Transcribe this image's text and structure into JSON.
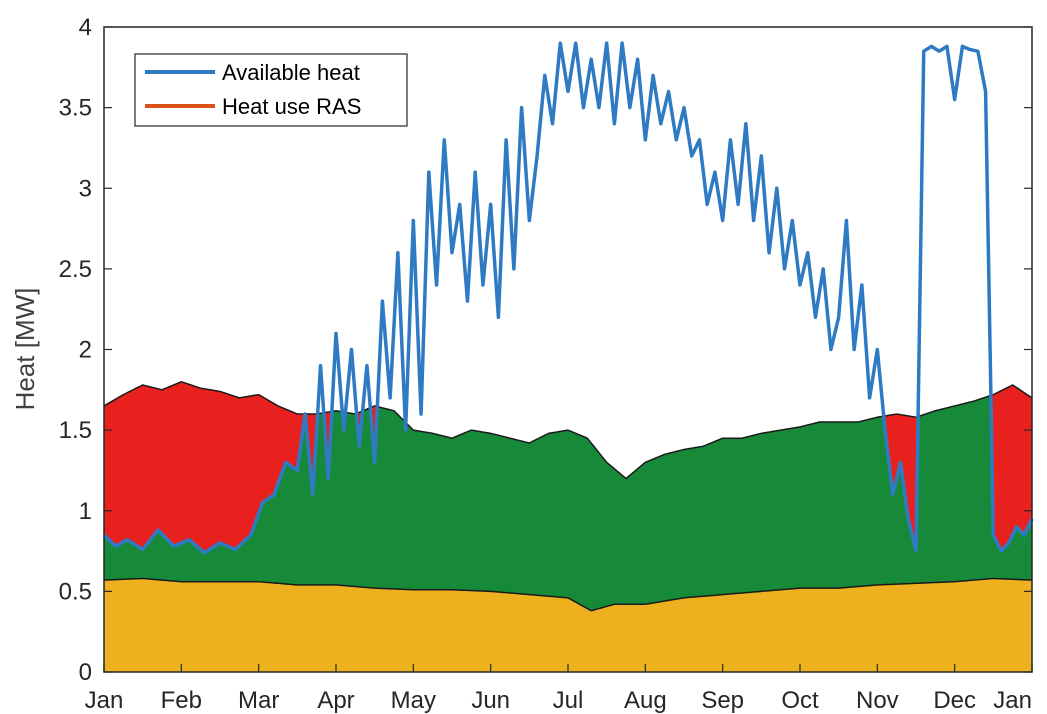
{
  "chart_data": {
    "type": "area",
    "ylabel": "Heat [MW]",
    "ylim": [
      0,
      4
    ],
    "yticks": [
      "0",
      "0.5",
      "1",
      "1.5",
      "2",
      "2.5",
      "3",
      "3.5",
      "4"
    ],
    "xticks": [
      "Jan",
      "Feb",
      "Mar",
      "Apr",
      "May",
      "Jun",
      "Jul",
      "Aug",
      "Sep",
      "Oct",
      "Nov",
      "Dec",
      "Jan"
    ],
    "legend": {
      "location": "top-left",
      "entries": [
        "Available heat",
        "Heat use RAS"
      ]
    },
    "colors": {
      "available_heat": "#2E7BC4",
      "heat_use_ras": "#D95319",
      "base_fill": "#EDB120",
      "green_fill": "#178A3A",
      "red_fill": "#E8211F",
      "boundary": "#1a1a1a"
    },
    "base_layer": {
      "x_month": [
        0,
        0.5,
        1,
        1.5,
        2,
        2.5,
        3,
        3.5,
        4,
        4.5,
        5,
        5.5,
        6,
        6.3,
        6.6,
        7,
        7.5,
        8,
        8.5,
        9,
        9.5,
        10,
        10.5,
        11,
        11.5,
        12
      ],
      "y": [
        0.57,
        0.58,
        0.56,
        0.56,
        0.56,
        0.54,
        0.54,
        0.52,
        0.51,
        0.51,
        0.5,
        0.48,
        0.46,
        0.38,
        0.42,
        0.42,
        0.46,
        0.48,
        0.5,
        0.52,
        0.52,
        0.54,
        0.55,
        0.56,
        0.58,
        0.57
      ]
    },
    "total_demand": {
      "x_month": [
        0,
        0.25,
        0.5,
        0.75,
        1,
        1.25,
        1.5,
        1.75,
        2,
        2.25,
        2.5,
        2.75,
        3,
        3.25,
        3.5,
        3.75,
        4,
        4.25,
        4.5,
        4.75,
        5,
        5.25,
        5.5,
        5.75,
        6,
        6.25,
        6.5,
        6.75,
        7,
        7.25,
        7.5,
        7.75,
        8,
        8.25,
        8.5,
        8.75,
        9,
        9.25,
        9.5,
        9.75,
        10,
        10.25,
        10.5,
        10.75,
        11,
        11.25,
        11.5,
        11.75,
        12
      ],
      "y": [
        1.65,
        1.72,
        1.78,
        1.75,
        1.8,
        1.76,
        1.74,
        1.7,
        1.72,
        1.65,
        1.6,
        1.6,
        1.62,
        1.6,
        1.65,
        1.62,
        1.5,
        1.48,
        1.45,
        1.5,
        1.48,
        1.45,
        1.42,
        1.48,
        1.5,
        1.45,
        1.3,
        1.2,
        1.3,
        1.35,
        1.38,
        1.4,
        1.45,
        1.45,
        1.48,
        1.5,
        1.52,
        1.55,
        1.55,
        1.55,
        1.58,
        1.6,
        1.58,
        1.62,
        1.65,
        1.68,
        1.72,
        1.78,
        1.7
      ]
    },
    "series": [
      {
        "name": "Available heat",
        "x_month": [
          0,
          0.15,
          0.3,
          0.5,
          0.7,
          0.9,
          1.1,
          1.3,
          1.5,
          1.7,
          1.9,
          2.05,
          2.2,
          2.35,
          2.5,
          2.6,
          2.7,
          2.8,
          2.9,
          3.0,
          3.1,
          3.2,
          3.3,
          3.4,
          3.5,
          3.6,
          3.7,
          3.8,
          3.9,
          4.0,
          4.1,
          4.2,
          4.3,
          4.4,
          4.5,
          4.6,
          4.7,
          4.8,
          4.9,
          5.0,
          5.1,
          5.2,
          5.3,
          5.4,
          5.5,
          5.6,
          5.7,
          5.8,
          5.9,
          6.0,
          6.1,
          6.2,
          6.3,
          6.4,
          6.5,
          6.6,
          6.7,
          6.8,
          6.9,
          7.0,
          7.1,
          7.2,
          7.3,
          7.4,
          7.5,
          7.6,
          7.7,
          7.8,
          7.9,
          8.0,
          8.1,
          8.2,
          8.3,
          8.4,
          8.5,
          8.6,
          8.7,
          8.8,
          8.9,
          9.0,
          9.1,
          9.2,
          9.3,
          9.4,
          9.5,
          9.6,
          9.7,
          9.8,
          9.9,
          10.0,
          10.1,
          10.2,
          10.3,
          10.4,
          10.5,
          10.6,
          10.7,
          10.8,
          10.9,
          11.0,
          11.1,
          11.2,
          11.3,
          11.4,
          11.5,
          11.6,
          11.7,
          11.8,
          11.9,
          12.0
        ],
        "y": [
          0.85,
          0.78,
          0.82,
          0.76,
          0.88,
          0.78,
          0.82,
          0.74,
          0.8,
          0.76,
          0.85,
          1.05,
          1.1,
          1.3,
          1.25,
          1.6,
          1.1,
          1.9,
          1.2,
          2.1,
          1.5,
          2.0,
          1.4,
          1.9,
          1.3,
          2.3,
          1.7,
          2.6,
          1.5,
          2.8,
          1.6,
          3.1,
          2.4,
          3.3,
          2.6,
          2.9,
          2.3,
          3.1,
          2.4,
          2.9,
          2.2,
          3.3,
          2.5,
          3.5,
          2.8,
          3.2,
          3.7,
          3.4,
          3.9,
          3.6,
          3.9,
          3.5,
          3.8,
          3.5,
          3.9,
          3.4,
          3.9,
          3.5,
          3.8,
          3.3,
          3.7,
          3.4,
          3.6,
          3.3,
          3.5,
          3.2,
          3.3,
          2.9,
          3.1,
          2.8,
          3.3,
          2.9,
          3.4,
          2.8,
          3.2,
          2.6,
          3.0,
          2.5,
          2.8,
          2.4,
          2.6,
          2.2,
          2.5,
          2.0,
          2.2,
          2.8,
          2.0,
          2.4,
          1.7,
          2.0,
          1.5,
          1.1,
          1.3,
          0.95,
          0.75,
          3.85,
          3.88,
          3.85,
          3.88,
          3.55,
          3.88,
          3.86,
          3.85,
          3.6,
          0.85,
          0.75,
          0.8,
          0.9,
          0.85,
          0.95
        ]
      },
      {
        "name": "Heat use RAS",
        "x_month": [],
        "y": []
      }
    ]
  }
}
